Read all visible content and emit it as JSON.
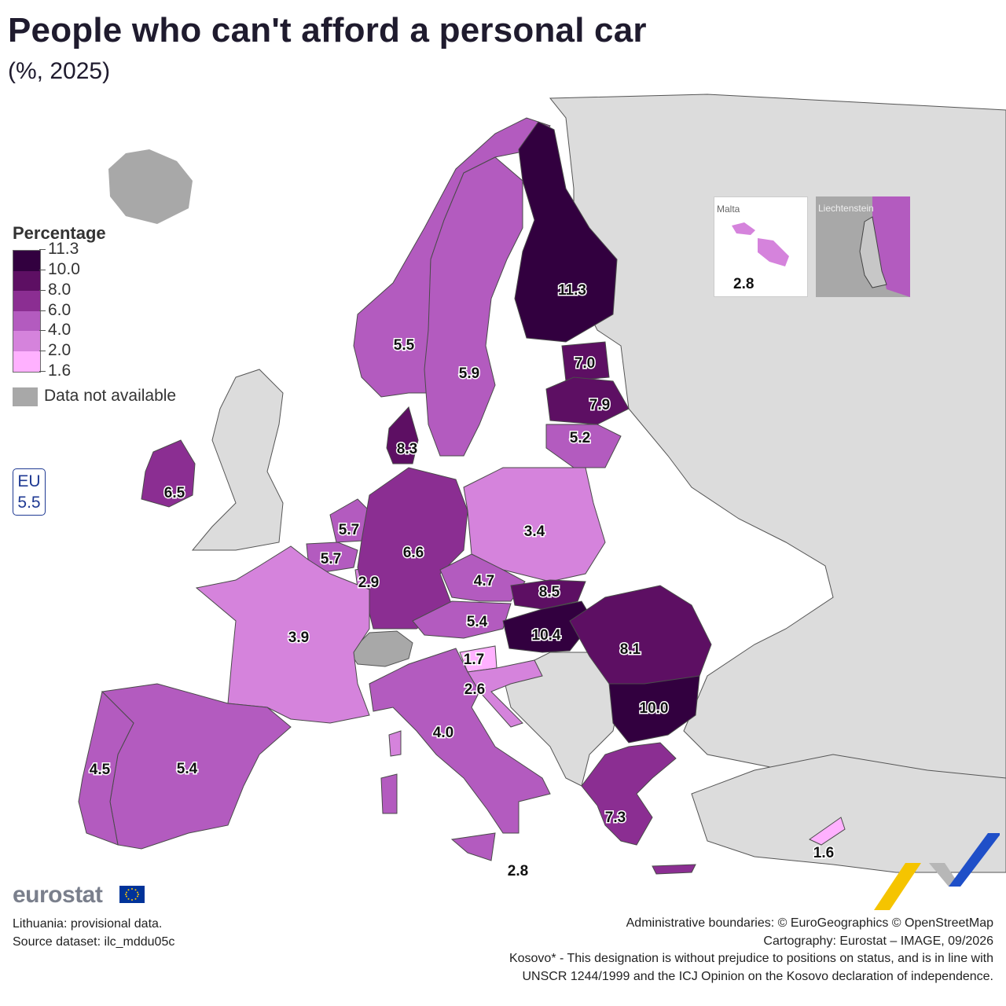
{
  "title": "People who can't afford a personal car",
  "subtitle": "(%, 2025)",
  "legend": {
    "title": "Percentage",
    "breaks": [
      "11.3",
      "10.0",
      "8.0",
      "6.0",
      "4.0",
      "2.0",
      "1.6"
    ],
    "colors": [
      "#32003f",
      "#5d0f63",
      "#8b2e92",
      "#b35bbf",
      "#d583dc",
      "#ffb1ff"
    ],
    "na_color": "#a8a8a8",
    "na_label": "Data not available"
  },
  "eu": {
    "label": "EU",
    "value": "5.5"
  },
  "insets": {
    "malta": {
      "label": "Malta",
      "value": "2.8"
    },
    "liechtenstein": {
      "label": "Liechtenstein"
    }
  },
  "chart_data": {
    "type": "choropleth",
    "unit": "%",
    "year": 2025,
    "values": [
      {
        "country": "Finland",
        "value": 11.3
      },
      {
        "country": "Hungary",
        "value": 10.4
      },
      {
        "country": "Bulgaria",
        "value": 10.0
      },
      {
        "country": "Slovakia",
        "value": 8.5
      },
      {
        "country": "Denmark",
        "value": 8.3
      },
      {
        "country": "Romania",
        "value": 8.1
      },
      {
        "country": "Latvia",
        "value": 7.9
      },
      {
        "country": "Greece",
        "value": 7.3
      },
      {
        "country": "Estonia",
        "value": 7.0
      },
      {
        "country": "Germany",
        "value": 6.6
      },
      {
        "country": "Ireland",
        "value": 6.5
      },
      {
        "country": "Sweden",
        "value": 5.9
      },
      {
        "country": "Netherlands",
        "value": 5.7
      },
      {
        "country": "Belgium",
        "value": 5.7
      },
      {
        "country": "Norway",
        "value": 5.5
      },
      {
        "country": "Austria",
        "value": 5.4
      },
      {
        "country": "Spain",
        "value": 5.4
      },
      {
        "country": "Lithuania",
        "value": 5.2
      },
      {
        "country": "Czechia",
        "value": 4.7
      },
      {
        "country": "Portugal",
        "value": 4.5
      },
      {
        "country": "Italy",
        "value": 4.0
      },
      {
        "country": "France",
        "value": 3.9
      },
      {
        "country": "Poland",
        "value": 3.4
      },
      {
        "country": "Luxembourg",
        "value": 2.9
      },
      {
        "country": "Malta",
        "value": 2.8
      },
      {
        "country": "Croatia",
        "value": 2.6
      },
      {
        "country": "Slovenia",
        "value": 1.7
      },
      {
        "country": "Cyprus",
        "value": 1.6
      }
    ],
    "unlabeled": [
      {
        "country": "Liechtenstein",
        "value": null
      }
    ],
    "eu_average": 5.5
  },
  "labels": {
    "fi": "11.3",
    "se": "5.9",
    "no": "5.5",
    "ee": "7.0",
    "lv": "7.9",
    "lt": "5.2",
    "dk": "8.3",
    "ie": "6.5",
    "nl": "5.7",
    "be": "5.7",
    "lu": "2.9",
    "de": "6.6",
    "pl": "3.4",
    "cz": "4.7",
    "sk": "8.5",
    "at": "5.4",
    "hu": "10.4",
    "ro": "8.1",
    "bg": "10.0",
    "si": "1.7",
    "hr": "2.6",
    "fr": "3.9",
    "es": "5.4",
    "pt": "4.5",
    "it": "4.0",
    "gr": "7.3",
    "cy": "1.6",
    "mt": "2.8"
  },
  "footer": {
    "brand": "eurostat",
    "note1": "Lithuania: provisional data.",
    "note2": "Source dataset: ilc_mddu05c",
    "credit1": "Administrative boundaries: © EuroGeographics © OpenStreetMap",
    "credit2": "Cartography: Eurostat – IMAGE, 09/2026",
    "kosovo1": "Kosovo* - This designation is without prejudice to positions on status, and is in line with",
    "kosovo2": "UNSCR 1244/1999 and the ICJ Opinion on the Kosovo declaration of independence."
  }
}
